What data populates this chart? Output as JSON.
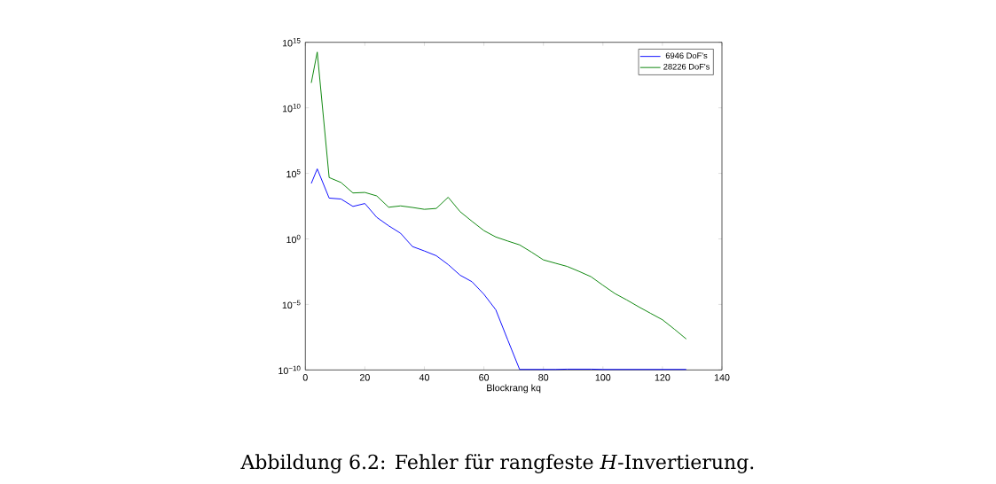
{
  "chart_data": {
    "type": "line",
    "log": "y",
    "xlabel": "Blockrang kq",
    "annotations": [
      "Abbildung 6.2: Fehler für rangfeste *H*-Invertierung."
    ],
    "x": [
      2,
      4,
      8,
      12,
      16,
      20,
      24,
      28,
      32,
      36,
      40,
      44,
      48,
      52,
      56,
      60,
      64,
      68,
      72,
      76,
      80,
      84,
      88,
      92,
      96,
      100,
      104,
      108,
      112,
      116,
      120,
      124,
      128
    ],
    "xlim": [
      0,
      140
    ],
    "xticks": [
      0,
      20,
      40,
      60,
      80,
      100,
      120,
      140
    ],
    "ylim": [
      1e-10,
      1000000000000000.0
    ],
    "yticks": [
      {
        "value": 1e-10,
        "label": "10$^{−10}$"
      },
      {
        "value": 1e-05,
        "label": "10$^{−5}$"
      },
      {
        "value": 1,
        "label": "10$^{0}$"
      },
      {
        "value": 100000.0,
        "label": "10$^{5}$"
      },
      {
        "value": 10000000000.0,
        "label": "10$^{10}$"
      },
      {
        "value": 1000000000000000.0,
        "label": "10$^{15}$"
      }
    ],
    "legend": "top right",
    "grid": false,
    "marker": "none",
    "line_style": "solid",
    "series": [
      {
        "name": "6946 DoF's",
        "color": "#0000ff",
        "values": [
          17000.0,
          220000.0,
          1300.0,
          1100.0,
          300.0,
          500.0,
          44.0,
          10.0,
          2.7,
          0.26,
          0.12,
          0.052,
          0.011,
          0.0017,
          0.00054,
          6e-05,
          3.9e-06,
          2e-08,
          1.1e-10,
          1.1e-10,
          1.1e-10,
          1.1e-10,
          1.15e-10,
          1.15e-10,
          1.15e-10,
          1.1e-10,
          1.1e-10,
          1.1e-10,
          1.1e-10,
          1.1e-10,
          1.1e-10,
          1.1e-10,
          1.1e-10
        ]
      },
      {
        "name": "28226 DoF's",
        "color": "#008000",
        "values": [
          800000000000.0,
          180000000000000.0,
          48000.0,
          20000.0,
          3200.0,
          3500.0,
          1900.0,
          260.0,
          330.0,
          250.0,
          180.0,
          210.0,
          1500.0,
          120.0,
          22.0,
          4.3,
          1.4,
          0.69,
          0.35,
          0.098,
          0.025,
          0.014,
          0.0079,
          0.0033,
          0.0013,
          0.00029,
          6.8e-05,
          2.2e-05,
          6.6e-06,
          2.1e-06,
          6.8e-07,
          1.3e-07,
          2.3e-08
        ]
      }
    ]
  }
}
